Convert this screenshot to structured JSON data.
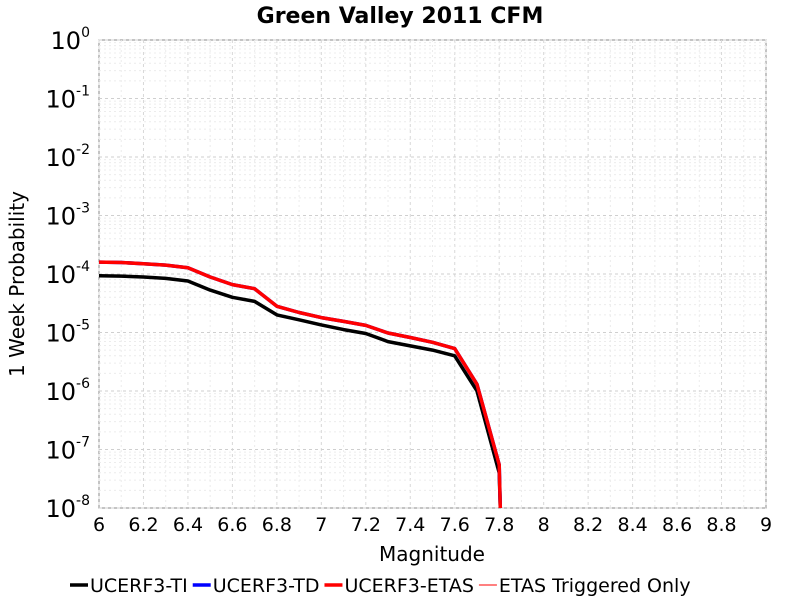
{
  "chart_data": {
    "type": "line",
    "title": "Green Valley 2011 CFM",
    "xlabel": "Magnitude",
    "ylabel": "1 Week Probability",
    "xlim": [
      6,
      9
    ],
    "ylim": [
      1e-08,
      1
    ],
    "y_scale": "log",
    "x_ticks": [
      "6",
      "6.2",
      "6.4",
      "6.6",
      "6.8",
      "7",
      "7.2",
      "7.4",
      "7.6",
      "7.8",
      "8",
      "8.2",
      "8.4",
      "8.6",
      "8.8",
      "9"
    ],
    "y_ticks": [
      {
        "base": "10",
        "exp": "0",
        "value": 1
      },
      {
        "base": "10",
        "exp": "-1",
        "value": 0.1
      },
      {
        "base": "10",
        "exp": "-2",
        "value": 0.01
      },
      {
        "base": "10",
        "exp": "-3",
        "value": 0.001
      },
      {
        "base": "10",
        "exp": "-4",
        "value": 0.0001
      },
      {
        "base": "10",
        "exp": "-5",
        "value": 1e-05
      },
      {
        "base": "10",
        "exp": "-6",
        "value": 1e-06
      },
      {
        "base": "10",
        "exp": "-7",
        "value": 1e-07
      },
      {
        "base": "10",
        "exp": "-8",
        "value": 1e-08
      }
    ],
    "grid": true,
    "legend_position": "bottom",
    "series": [
      {
        "name": "UCERF3-TI",
        "color": "#000000",
        "stroke": "thick",
        "x": [
          6.0,
          6.1,
          6.2,
          6.3,
          6.4,
          6.5,
          6.6,
          6.7,
          6.8,
          6.9,
          7.0,
          7.1,
          7.2,
          7.3,
          7.4,
          7.5,
          7.6,
          7.7,
          7.8,
          7.805
        ],
        "y": [
          9.3e-05,
          9.2e-05,
          8.9e-05,
          8.4e-05,
          7.6e-05,
          5.3e-05,
          4e-05,
          3.4e-05,
          2e-05,
          1.65e-05,
          1.35e-05,
          1.12e-05,
          9.6e-06,
          7e-06,
          5.9e-06,
          5e-06,
          4e-06,
          1e-06,
          4e-08,
          1e-08
        ]
      },
      {
        "name": "UCERF3-TD",
        "color": "#0000ff",
        "stroke": "thick",
        "x": [
          6.0,
          6.1,
          6.2,
          6.3,
          6.4,
          6.5,
          6.6,
          6.7,
          6.8,
          6.9,
          7.0,
          7.1,
          7.2,
          7.3,
          7.4,
          7.5,
          7.6,
          7.7,
          7.8,
          7.805
        ],
        "y": [
          0.00016,
          0.000157,
          0.00015,
          0.000142,
          0.000128,
          8.9e-05,
          6.6e-05,
          5.6e-05,
          2.8e-05,
          2.2e-05,
          1.8e-05,
          1.55e-05,
          1.32e-05,
          9.8e-06,
          8.2e-06,
          6.8e-06,
          5.3e-06,
          1.3e-06,
          5.5e-08,
          1e-08
        ]
      },
      {
        "name": "UCERF3-ETAS",
        "color": "#ff0000",
        "stroke": "thick",
        "x": [
          6.0,
          6.1,
          6.2,
          6.3,
          6.4,
          6.5,
          6.6,
          6.7,
          6.8,
          6.9,
          7.0,
          7.1,
          7.2,
          7.3,
          7.4,
          7.5,
          7.6,
          7.7,
          7.8,
          7.805
        ],
        "y": [
          0.00016,
          0.000157,
          0.00015,
          0.000142,
          0.000128,
          8.9e-05,
          6.6e-05,
          5.6e-05,
          2.8e-05,
          2.2e-05,
          1.8e-05,
          1.55e-05,
          1.32e-05,
          9.8e-06,
          8.2e-06,
          6.8e-06,
          5.3e-06,
          1.3e-06,
          5.5e-08,
          1e-08
        ]
      },
      {
        "name": "ETAS Triggered Only",
        "color": "#ff0000",
        "stroke": "thin",
        "x": [],
        "y": []
      }
    ]
  }
}
